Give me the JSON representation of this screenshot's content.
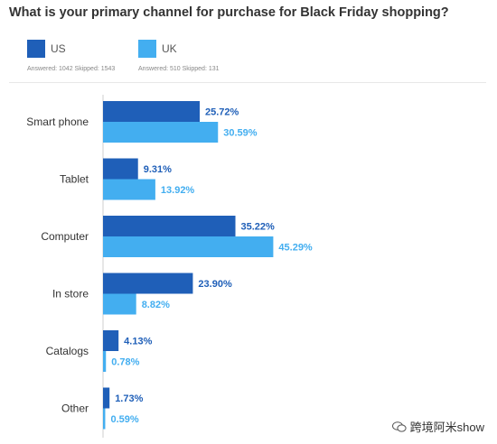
{
  "title": "What is your primary channel for purchase for Black Friday shopping?",
  "legend": [
    {
      "label": "US",
      "color": "#1f5fb8",
      "stats": "Answered: 1042  Skipped: 1543"
    },
    {
      "label": "UK",
      "color": "#43aef0",
      "stats": "Answered: 510  Skipped: 131"
    }
  ],
  "watermark": "跨境阿米show",
  "chart_data": {
    "type": "bar",
    "orientation": "horizontal",
    "categories": [
      "Smart phone",
      "Tablet",
      "Computer",
      "In store",
      "Catalogs",
      "Other"
    ],
    "series": [
      {
        "name": "US",
        "values": [
          25.72,
          9.31,
          35.22,
          23.9,
          4.13,
          1.73
        ],
        "labels": [
          "25.72%",
          "9.31%",
          "35.22%",
          "23.90%",
          "4.13%",
          "1.73%"
        ],
        "color": "#1f5fb8"
      },
      {
        "name": "UK",
        "values": [
          30.59,
          13.92,
          45.29,
          8.82,
          0.78,
          0.59
        ],
        "labels": [
          "30.59%",
          "13.92%",
          "45.29%",
          "8.82%",
          "0.78%",
          "0.59%"
        ],
        "color": "#43aef0"
      }
    ],
    "xlim": [
      0,
      100
    ],
    "grid": false,
    "legend_position": "top-left"
  }
}
